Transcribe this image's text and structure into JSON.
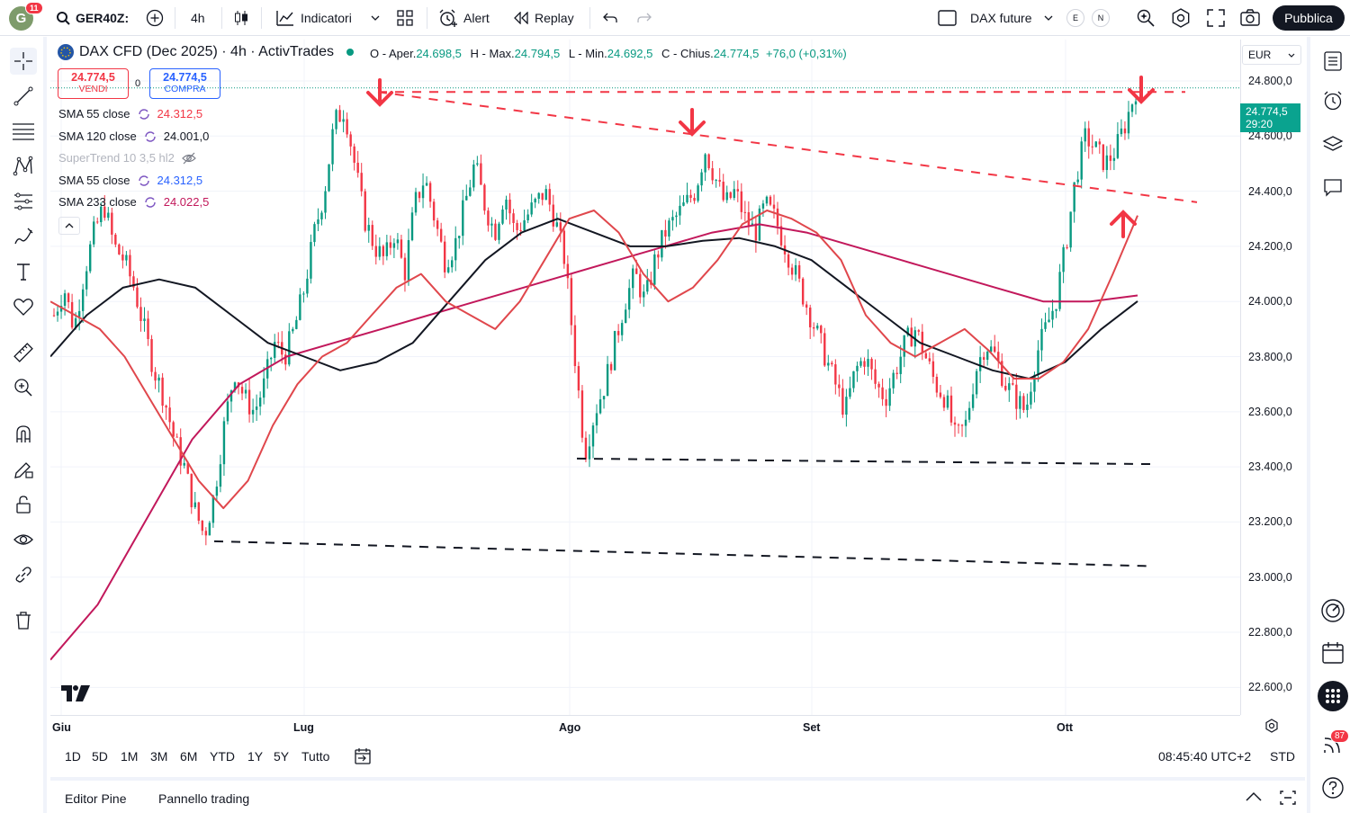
{
  "topbar": {
    "avatar_letter": "G",
    "avatar_badge": "11",
    "symbol": "GER40Z:",
    "interval": "4h",
    "indicators": "Indicatori",
    "alert": "Alert",
    "replay": "Replay",
    "layout_name": "DAX future",
    "chip_e": "E",
    "chip_n": "N",
    "publish": "Pubblica"
  },
  "legend": {
    "title": "DAX CFD (Dec 2025) · 4h · ActivTrades",
    "o_label": "O - Aper.",
    "o_value": "24.698,5",
    "h_label": "H - Max.",
    "h_value": "24.794,5",
    "l_label": "L - Min.",
    "l_value": "24.692,5",
    "c_label": "C - Chius.",
    "c_value": "24.774,5",
    "change": "+76,0 (+0,31%)"
  },
  "trade": {
    "sell_price": "24.774,5",
    "sell_label": "VENDI",
    "spread": "0",
    "buy_price": "24.774,5",
    "buy_label": "COMPRA"
  },
  "indicators": [
    {
      "name": "SMA 55 close",
      "value": "24.312,5",
      "color": "#f23645"
    },
    {
      "name": "SMA 120 close",
      "value": "24.001,0",
      "color": "#131722"
    },
    {
      "name": "SuperTrend 10 3,5 hl2",
      "value": "",
      "color": "#b2b5be"
    },
    {
      "name": "SMA 55 close",
      "value": "24.312,5",
      "color": "#2962ff"
    },
    {
      "name": "SMA 233 close",
      "value": "24.022,5",
      "color": "#c2185b"
    }
  ],
  "price_axis": {
    "currency": "EUR",
    "labels": [
      "24.800,0",
      "24.600,0",
      "24.400,0",
      "24.200,0",
      "24.000,0",
      "23.800,0",
      "23.600,0",
      "23.400,0",
      "23.200,0",
      "23.000,0",
      "22.800,0",
      "22.600,0"
    ],
    "last_price": "24.774,5",
    "countdown": "29:20"
  },
  "time_axis": {
    "labels": [
      "Giu",
      "Lug",
      "Ago",
      "Set",
      "Ott"
    ]
  },
  "range_bar": {
    "ranges": [
      "1D",
      "5D",
      "1M",
      "3M",
      "6M",
      "YTD",
      "1Y",
      "5Y",
      "Tutto"
    ],
    "clock": "08:45:40 UTC+2",
    "mode": "STD"
  },
  "bottom_panel": {
    "tab1": "Editor Pine",
    "tab2": "Pannello trading"
  },
  "right_toolbar": {
    "notif_badge": "87"
  },
  "colors": {
    "up": "#089981",
    "down": "#f23645",
    "sma55": "#e0474c",
    "sma120": "#131722",
    "sma233": "#c2185b",
    "annotation": "#f23645"
  },
  "chart_data": {
    "type": "candlestick",
    "title": "DAX CFD (Dec 2025) · 4h · ActivTrades",
    "ylim": [
      22500,
      24950
    ],
    "x_labels": [
      "Giu",
      "Lug",
      "Ago",
      "Set",
      "Ott"
    ],
    "close_path": [
      23950,
      24050,
      23900,
      24100,
      24250,
      24350,
      24200,
      24150,
      24050,
      23900,
      23750,
      23650,
      23500,
      23400,
      23250,
      23150,
      23300,
      23550,
      23750,
      23650,
      23600,
      23700,
      23850,
      23800,
      23900,
      24050,
      24250,
      24400,
      24650,
      24700,
      24500,
      24300,
      24200,
      24150,
      24250,
      24100,
      24350,
      24450,
      24300,
      24150,
      24200,
      24350,
      24500,
      24350,
      24250,
      24400,
      24250,
      24300,
      24350,
      24400,
      24300,
      24150,
      23800,
      23450,
      23600,
      23700,
      23850,
      24000,
      24100,
      24000,
      24150,
      24250,
      24300,
      24350,
      24400,
      24550,
      24450,
      24350,
      24400,
      24300,
      24250,
      24350,
      24300,
      24200,
      24100,
      24000,
      23900,
      23800,
      23700,
      23600,
      23750,
      23800,
      23700,
      23650,
      23750,
      23850,
      23900,
      23800,
      23700,
      23650,
      23500,
      23550,
      23750,
      23850,
      23800,
      23700,
      23650,
      23600,
      23800,
      23900,
      24000,
      24200,
      24450,
      24600,
      24550,
      24500,
      24550,
      24650,
      24770
    ],
    "sma55_path": [
      24000,
      23950,
      23900,
      23800,
      23650,
      23500,
      23350,
      23250,
      23350,
      23550,
      23700,
      23800,
      23850,
      23950,
      24050,
      24100,
      24000,
      23950,
      23900,
      24000,
      24150,
      24300,
      24330,
      24250,
      24100,
      24000,
      24050,
      24150,
      24280,
      24330,
      24300,
      24250,
      24150,
      23950,
      23850,
      23800,
      23850,
      23900,
      23820,
      23720,
      23720,
      23780,
      23900,
      24100,
      24312
    ],
    "sma120_path": [
      23800,
      23950,
      24050,
      24080,
      24050,
      23950,
      23850,
      23800,
      23750,
      23780,
      23850,
      24000,
      24150,
      24250,
      24300,
      24250,
      24200,
      24200,
      24220,
      24230,
      24200,
      24150,
      24050,
      23950,
      23850,
      23800,
      23750,
      23720,
      23780,
      23900,
      24001
    ],
    "sma233_path": [
      22700,
      22900,
      23200,
      23500,
      23700,
      23800,
      23850,
      23900,
      23950,
      24000,
      24050,
      24100,
      24150,
      24200,
      24250,
      24280,
      24250,
      24200,
      24150,
      24100,
      24050,
      24000,
      24000,
      24022
    ],
    "resistance_lines": [
      {
        "from": [
          24760,
          0.28
        ],
        "to": [
          24760,
          0.95
        ]
      },
      {
        "from": [
          24760,
          0.28
        ],
        "to": [
          24360,
          0.96
        ]
      }
    ],
    "support_lines": [
      {
        "from": [
          23430,
          0.44
        ],
        "to": [
          23410,
          0.93
        ]
      },
      {
        "from": [
          23130,
          0.14
        ],
        "to": [
          23040,
          0.93
        ]
      }
    ]
  }
}
